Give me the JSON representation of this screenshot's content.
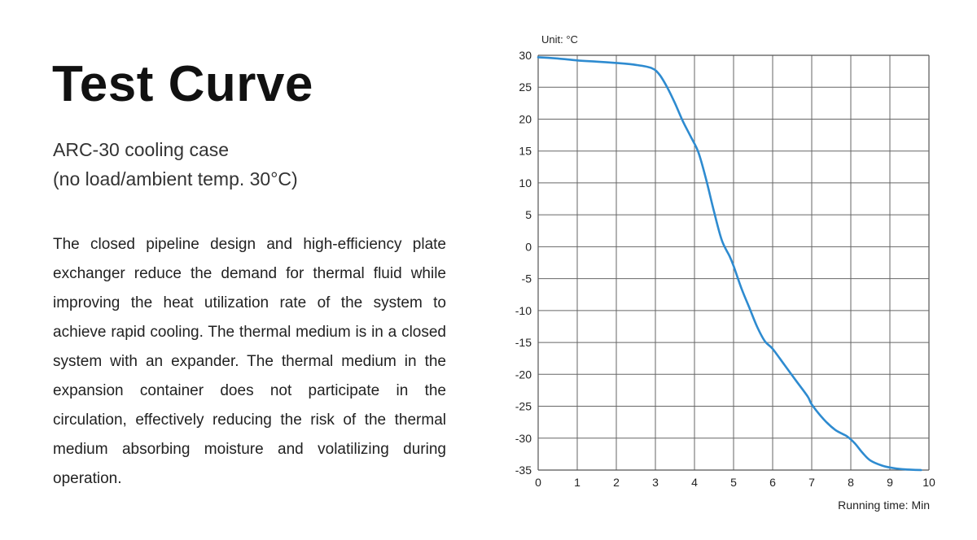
{
  "heading": {
    "title": "Test Curve",
    "subtitle_line1": "ARC-30 cooling case",
    "subtitle_line2": "(no load/ambient temp. 30°C)"
  },
  "description": "The closed pipeline design and high-efficiency plate exchanger reduce the demand for thermal fluid while improving the heat utilization rate of the system to achieve rapid cooling. The thermal medium is in a closed system with an expander. The thermal medium in the expansion container does not participate in the circulation, effectively reducing the risk of the thermal medium absorbing moisture and volatilizing during operation.",
  "chart_data": {
    "type": "line",
    "title": "",
    "ylabel": "Unit: °C",
    "xlabel": "Running time: Min",
    "xlim": [
      0,
      10
    ],
    "ylim": [
      -35,
      30
    ],
    "xticks": [
      0,
      1,
      2,
      3,
      4,
      5,
      6,
      7,
      8,
      9,
      10
    ],
    "yticks": [
      30,
      25,
      20,
      15,
      10,
      5,
      0,
      -5,
      -10,
      -15,
      -20,
      -25,
      -30,
      -35
    ],
    "grid": true,
    "line_color": "#2e8bd0",
    "series": [
      {
        "x": [
          0,
          0.5,
          1,
          1.5,
          2,
          2.5,
          2.9,
          3.1,
          3.3,
          3.5,
          3.7,
          3.9,
          4.1,
          4.3,
          4.5,
          4.7,
          4.9,
          5.0,
          5.2,
          5.4,
          5.6,
          5.8,
          6.0,
          6.3,
          6.6,
          6.9,
          7.0,
          7.3,
          7.6,
          7.9,
          8.1,
          8.3,
          8.5,
          8.8,
          9.1,
          9.4,
          9.8
        ],
        "y": [
          29.7,
          29.5,
          29.2,
          29.0,
          28.8,
          28.5,
          28.0,
          27.0,
          25.0,
          22.5,
          19.7,
          17.3,
          14.8,
          10.5,
          5.5,
          1.0,
          -1.5,
          -3.0,
          -6.5,
          -9.5,
          -12.5,
          -14.8,
          -16.0,
          -18.5,
          -21.0,
          -23.5,
          -24.7,
          -27.0,
          -28.7,
          -29.7,
          -30.8,
          -32.3,
          -33.5,
          -34.3,
          -34.7,
          -34.9,
          -35.0
        ]
      }
    ]
  }
}
